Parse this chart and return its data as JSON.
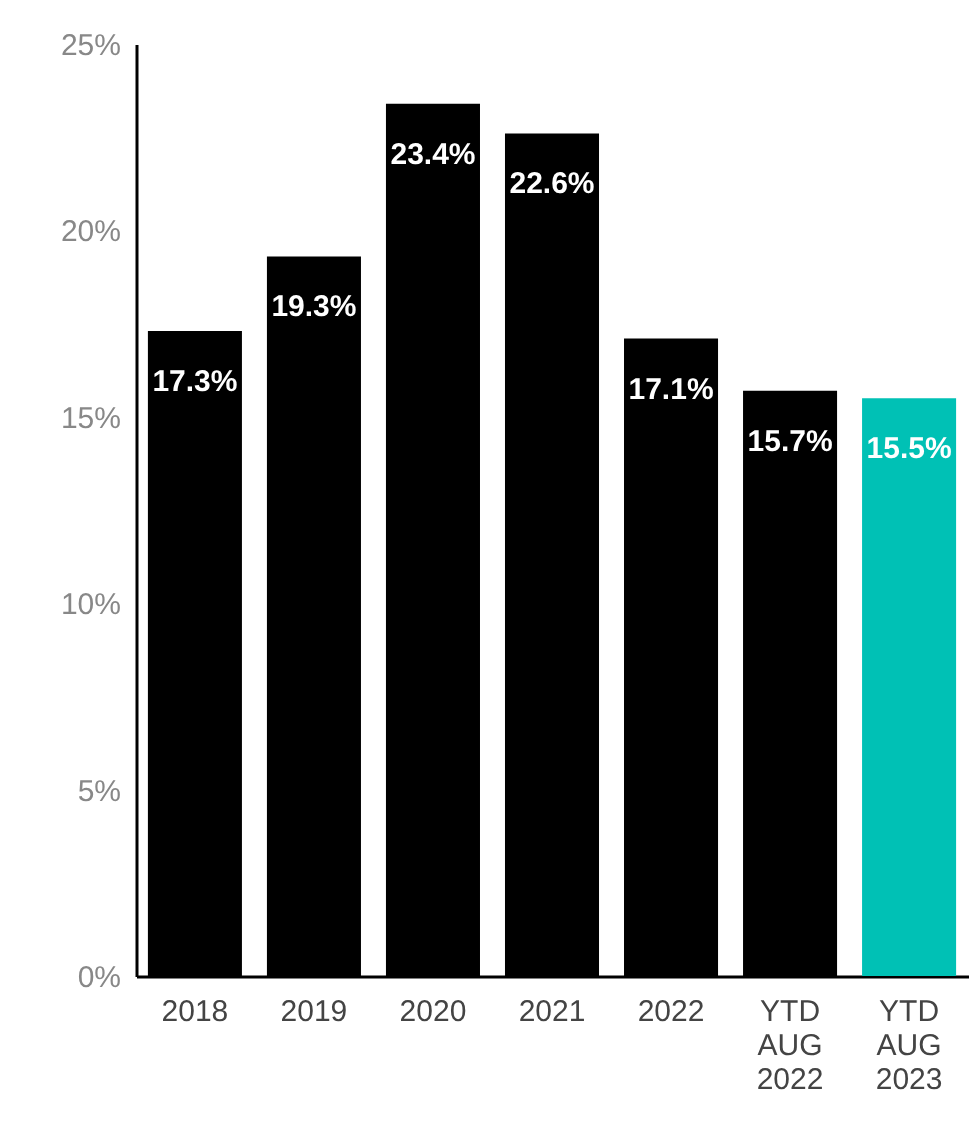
{
  "chart_data": {
    "type": "bar",
    "categories": [
      "2018",
      "2019",
      "2020",
      "2021",
      "2022",
      "YTD AUG 2022",
      "YTD AUG 2023"
    ],
    "values": [
      17.3,
      19.3,
      23.4,
      22.6,
      17.1,
      15.7,
      15.5
    ],
    "colors": [
      "#000000",
      "#000000",
      "#000000",
      "#000000",
      "#000000",
      "#000000",
      "#00c1b5"
    ],
    "value_labels": [
      "17.3%",
      "19.3%",
      "23.4%",
      "22.6%",
      "17.1%",
      "15.7%",
      "15.5%"
    ],
    "ylim": [
      0,
      25
    ],
    "yticks": [
      {
        "value": 0,
        "label": "0%"
      },
      {
        "value": 5,
        "label": "5%"
      },
      {
        "value": 10,
        "label": "10%"
      },
      {
        "value": 15,
        "label": "15%"
      },
      {
        "value": 20,
        "label": "20%"
      },
      {
        "value": 25,
        "label": "25%"
      }
    ],
    "grid": false
  }
}
